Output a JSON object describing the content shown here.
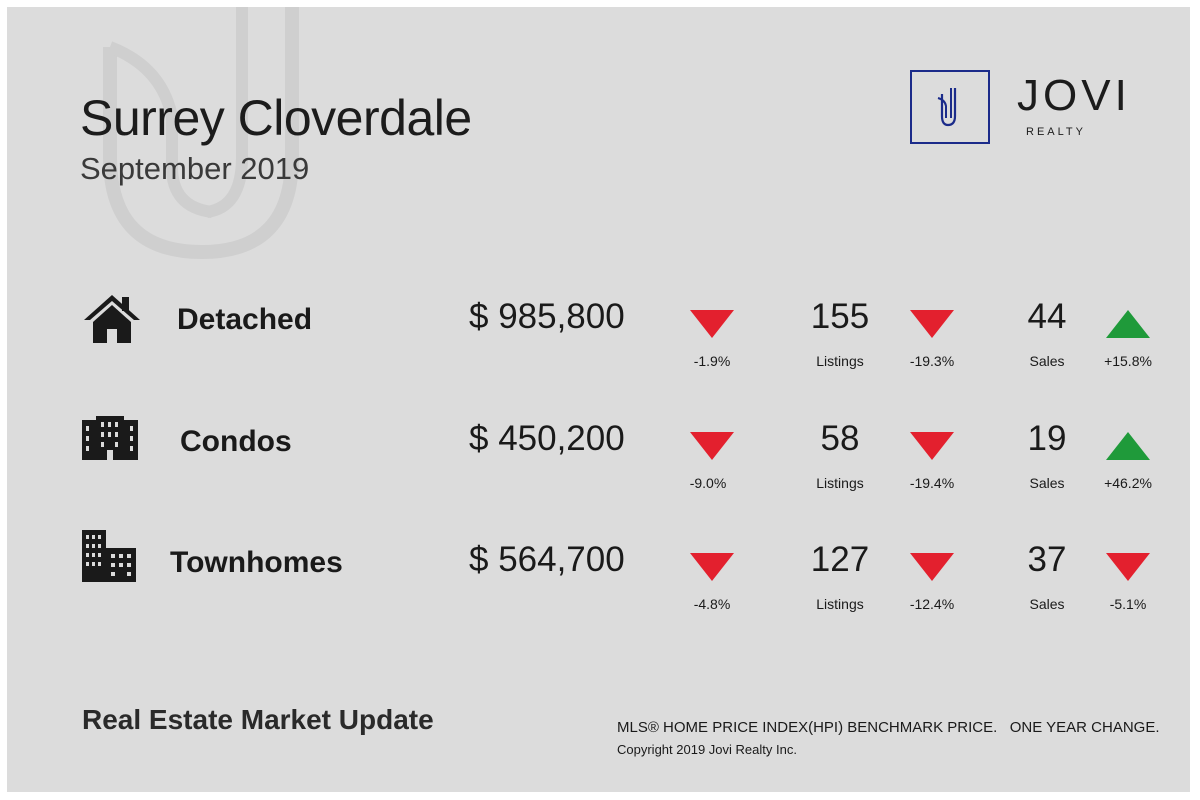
{
  "header": {
    "title": "Surrey Cloverdale",
    "subtitle": "September 2019"
  },
  "logo": {
    "name": "JOVI",
    "sub": "REALTY",
    "letter": "J",
    "color": "#1b2b8a"
  },
  "colors": {
    "up": "#1f9a3a",
    "down": "#e3202e",
    "background": "#dcdcdc"
  },
  "rows": [
    {
      "category": "Detached",
      "icon": "house-icon",
      "price": "$ 985,800",
      "price_change": "-1.9%",
      "price_trend": "down",
      "listings": "155",
      "listings_label": "Listings",
      "listings_change": "-19.3%",
      "listings_trend": "down",
      "sales": "44",
      "sales_label": "Sales",
      "sales_change": "+15.8%",
      "sales_trend": "up"
    },
    {
      "category": "Condos",
      "icon": "apartment-building-icon",
      "price": "$ 450,200",
      "price_change": "-9.0%",
      "price_trend": "down",
      "listings": "58",
      "listings_label": "Listings",
      "listings_change": "-19.4%",
      "listings_trend": "down",
      "sales": "19",
      "sales_label": "Sales",
      "sales_change": "+46.2%",
      "sales_trend": "up"
    },
    {
      "category": "Townhomes",
      "icon": "townhome-buildings-icon",
      "price": "$ 564,700",
      "price_change": "-4.8%",
      "price_trend": "down",
      "listings": "127",
      "listings_label": "Listings",
      "listings_change": "-12.4%",
      "listings_trend": "down",
      "sales": "37",
      "sales_label": "Sales",
      "sales_change": "-5.1%",
      "sales_trend": "down"
    }
  ],
  "footer": {
    "title": "Real Estate Market Update",
    "note": "MLS® HOME PRICE INDEX(HPI) BENCHMARK PRICE.   ONE YEAR CHANGE.",
    "copyright": "Copyright 2019 Jovi Realty Inc."
  }
}
